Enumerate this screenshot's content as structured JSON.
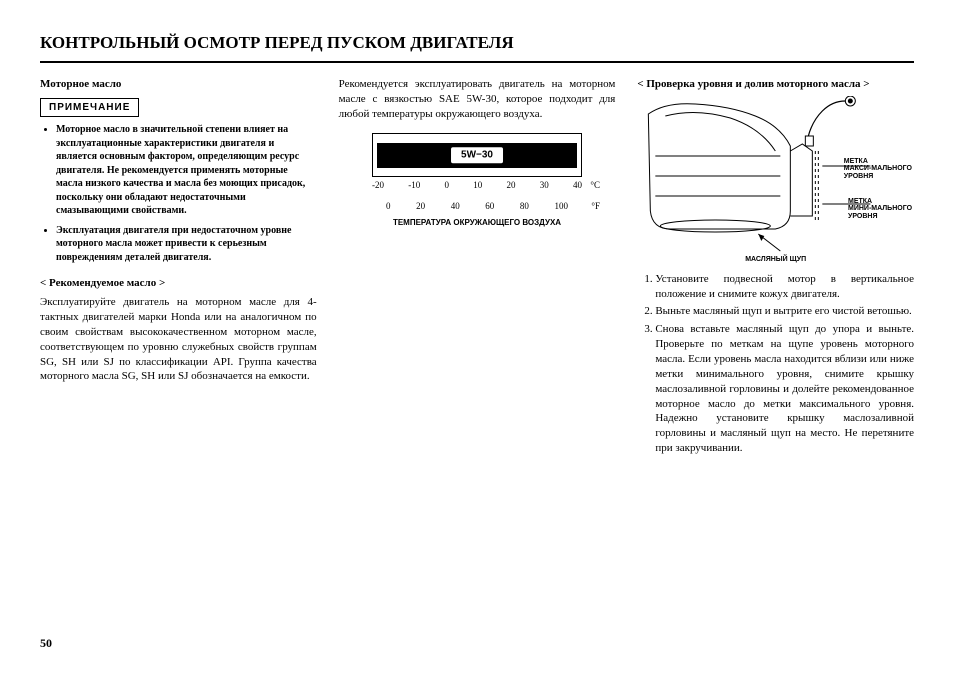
{
  "title": "КОНТРОЛЬНЫЙ ОСМОТР ПЕРЕД ПУСКОМ ДВИГАТЕЛЯ",
  "pageNum": "50",
  "col1": {
    "heading": "Моторное масло",
    "noteLabel": "ПРИМЕЧАНИЕ",
    "notes": [
      "Моторное масло в значительной степени влияет на эксплуатационные характеристики двигателя и является основным фактором, определяющим ресурс двигателя. Не рекомендуется применять моторные масла низкого качества и масла без моющих присадок, поскольку они обладают недостаточными смазывающими свойствами.",
      "Эксплуатация двигателя при недостаточном уровне моторного масла может привести к серьезным повреждениям деталей двигателя."
    ],
    "recHeading": "< Рекомендуемое масло >",
    "recBody": "Эксплуатируйте двигатель на моторном масле для 4-тактных двигателей марки Honda или на аналогичном по своим свойствам высококачественном моторном масле, соответствующем по уровню служебных свойств группам SG, SH или SJ по классификации API. Группа качества моторного масла SG, SH или SJ обозначается на емкости."
  },
  "col2": {
    "intro": "Рекомендуется эксплуатировать двигатель на моторном масле с вязкостью SAE 5W-30, которое подходит для любой температуры окружающего воздуха.",
    "chart": {
      "pill": "5W−30",
      "celsius": [
        "-20",
        "-10",
        "0",
        "10",
        "20",
        "30",
        "40"
      ],
      "celsiusUnit": "°C",
      "fahr": [
        "0",
        "20",
        "40",
        "60",
        "80",
        "100"
      ],
      "fahrUnit": "°F",
      "caption": "ТЕМПЕРАТУРА ОКРУЖАЮЩЕГО ВОЗДУХА"
    }
  },
  "col3": {
    "heading": "< Проверка уровня и долив моторного масла >",
    "labelMax": "МЕТКА МАКСИ-МАЛЬНОГО УРОВНЯ",
    "labelMin": "МЕТКА МИНИ-МАЛЬНОГО УРОВНЯ",
    "labelDip": "МАСЛЯНЫЙ ЩУП",
    "steps": [
      "Установите подвесной мотор в вертикальное положение и снимите кожух двигателя.",
      "Выньте масляный щуп и вытрите его чистой ветошью.",
      "Снова вставьте масляный щуп до упора и выньте.  Проверьте по меткам на щупе уровень моторного масла. Если уровень масла находится вблизи или ниже метки минимального уровня, снимите крышку маслозаливной горловины и долейте рекомендованное моторное масло до метки максимального уровня. Надежно установите крышку маслозаливной горловины и масляный щуп на место. Не перетяните при закручивании."
    ]
  }
}
